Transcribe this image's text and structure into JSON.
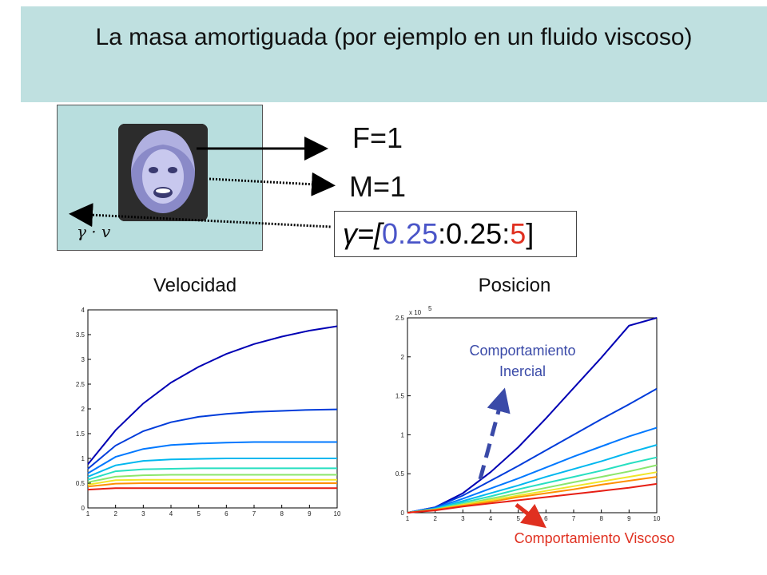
{
  "title": "La masa amortiguada (por ejemplo en un fluido viscoso)",
  "diagram": {
    "force_label": "F=1",
    "mass_label": "M=1",
    "gamma": {
      "prefix": "γ=[",
      "start": "0.25",
      "sep1": ":",
      "step": "0.25",
      "sep2": ":",
      "end": "5",
      "suffix": "]"
    },
    "drag_label": "γ · v",
    "colors": {
      "start": "#4a55c8",
      "end": "#e03020",
      "arrow": "#000000"
    },
    "icons": [
      "face-photo",
      "arrow-right",
      "dotted-arrow-left"
    ]
  },
  "annotations": {
    "inertial": "Comportamiento Inercial",
    "inertial_line1": "Comportamiento",
    "inertial_line2": "Inercial",
    "viscous": "Comportamiento Viscoso",
    "inertial_color": "#3a4aa8",
    "viscous_color": "#e03020"
  },
  "chart_data": [
    {
      "type": "line",
      "title": "Velocidad",
      "xlabel": "",
      "ylabel": "",
      "xlim": [
        1,
        10
      ],
      "ylim": [
        0,
        4
      ],
      "xticks": [
        "1",
        "2",
        "3",
        "4",
        "5",
        "6",
        "7",
        "8",
        "9",
        "10"
      ],
      "yticks": [
        "0",
        "0.5",
        "1",
        "1.5",
        "2",
        "2.5",
        "3",
        "3.5",
        "4"
      ],
      "grid": false,
      "gamma": [
        0.25,
        0.5,
        0.75,
        1,
        1.25,
        1.5,
        1.75,
        2,
        2.25,
        2.5,
        2.75,
        3,
        3.25,
        3.5,
        3.75,
        4,
        4.25,
        4.5,
        4.75,
        5
      ],
      "series_desc": "v(t) = (1/γ)(1 - e^{-γ t}) approaching terminal velocity 1/γ",
      "series": [
        {
          "gamma": 0.25,
          "x": [
            1,
            2,
            3,
            4,
            5,
            6,
            7,
            8,
            9,
            10
          ],
          "values": [
            0.88,
            1.57,
            2.11,
            2.53,
            2.85,
            3.11,
            3.31,
            3.46,
            3.58,
            3.67
          ]
        },
        {
          "gamma": 0.5,
          "x": [
            1,
            2,
            3,
            4,
            5,
            6,
            7,
            8,
            9,
            10
          ],
          "values": [
            0.79,
            1.26,
            1.55,
            1.73,
            1.84,
            1.9,
            1.94,
            1.96,
            1.98,
            1.99
          ]
        },
        {
          "gamma": 0.75,
          "x": [
            1,
            2,
            3,
            4,
            5,
            6,
            7,
            8,
            9,
            10
          ],
          "values": [
            0.7,
            1.03,
            1.19,
            1.27,
            1.3,
            1.32,
            1.33,
            1.33,
            1.33,
            1.33
          ]
        },
        {
          "gamma": 1.0,
          "x": [
            1,
            2,
            3,
            4,
            5,
            6,
            7,
            8,
            9,
            10
          ],
          "values": [
            0.63,
            0.86,
            0.95,
            0.98,
            0.99,
            1.0,
            1.0,
            1.0,
            1.0,
            1.0
          ]
        },
        {
          "gamma": 1.25,
          "x": [
            1,
            2,
            3,
            4,
            5,
            6,
            7,
            8,
            9,
            10
          ],
          "values": [
            0.57,
            0.74,
            0.78,
            0.79,
            0.8,
            0.8,
            0.8,
            0.8,
            0.8,
            0.8
          ]
        },
        {
          "gamma": 1.5,
          "x": [
            1,
            2,
            3,
            4,
            5,
            6,
            7,
            8,
            9,
            10
          ],
          "values": [
            0.52,
            0.63,
            0.66,
            0.67,
            0.67,
            0.67,
            0.67,
            0.67,
            0.67,
            0.67
          ]
        },
        {
          "gamma": 1.75,
          "x": [
            1,
            2,
            3,
            4,
            5,
            6,
            7,
            8,
            9,
            10
          ],
          "values": [
            0.47,
            0.56,
            0.57,
            0.57,
            0.57,
            0.57,
            0.57,
            0.57,
            0.57,
            0.57
          ]
        },
        {
          "gamma": 2.0,
          "x": [
            1,
            2,
            3,
            4,
            5,
            6,
            7,
            8,
            9,
            10
          ],
          "values": [
            0.43,
            0.49,
            0.5,
            0.5,
            0.5,
            0.5,
            0.5,
            0.5,
            0.5,
            0.5
          ]
        },
        {
          "gamma": 2.5,
          "x": [
            1,
            2,
            3,
            4,
            5,
            6,
            7,
            8,
            9,
            10
          ],
          "values": [
            0.37,
            0.4,
            0.4,
            0.4,
            0.4,
            0.4,
            0.4,
            0.4,
            0.4,
            0.4
          ]
        }
      ]
    },
    {
      "type": "line",
      "title": "Posicion",
      "xlabel": "",
      "ylabel": "",
      "xlim": [
        1,
        10
      ],
      "ylim": [
        0,
        2.5
      ],
      "y_multiplier": "x 10^5",
      "multiplier_base": "x 10",
      "multiplier_exp": "5",
      "xticks": [
        "1",
        "2",
        "3",
        "4",
        "5",
        "6",
        "7",
        "8",
        "9",
        "10"
      ],
      "yticks": [
        "0",
        "0.5",
        "1",
        "1.5",
        "2",
        "2.5"
      ],
      "grid": false,
      "series": [
        {
          "gamma": 0.25,
          "x": [
            1,
            2,
            3,
            4,
            5,
            6,
            7,
            8,
            9,
            10
          ],
          "values": [
            0.0,
            0.07,
            0.25,
            0.52,
            0.84,
            1.21,
            1.6,
            1.99,
            2.4,
            2.82
          ]
        },
        {
          "gamma": 0.5,
          "x": [
            1,
            2,
            3,
            4,
            5,
            6,
            7,
            8,
            9,
            10
          ],
          "values": [
            0.0,
            0.07,
            0.22,
            0.41,
            0.6,
            0.8,
            1.0,
            1.2,
            1.39,
            1.59
          ]
        },
        {
          "gamma": 0.75,
          "x": [
            1,
            2,
            3,
            4,
            5,
            6,
            7,
            8,
            9,
            10
          ],
          "values": [
            0.0,
            0.06,
            0.18,
            0.31,
            0.44,
            0.58,
            0.72,
            0.85,
            0.98,
            1.09
          ]
        },
        {
          "gamma": 1.0,
          "x": [
            1,
            2,
            3,
            4,
            5,
            6,
            7,
            8,
            9,
            10
          ],
          "values": [
            0.0,
            0.05,
            0.15,
            0.25,
            0.35,
            0.46,
            0.56,
            0.66,
            0.77,
            0.87
          ]
        },
        {
          "gamma": 1.25,
          "x": [
            1,
            2,
            3,
            4,
            5,
            6,
            7,
            8,
            9,
            10
          ],
          "values": [
            0.0,
            0.05,
            0.13,
            0.21,
            0.3,
            0.38,
            0.46,
            0.54,
            0.63,
            0.71
          ]
        },
        {
          "gamma": 1.5,
          "x": [
            1,
            2,
            3,
            4,
            5,
            6,
            7,
            8,
            9,
            10
          ],
          "values": [
            0.0,
            0.04,
            0.11,
            0.18,
            0.25,
            0.32,
            0.39,
            0.46,
            0.53,
            0.61
          ]
        },
        {
          "gamma": 1.75,
          "x": [
            1,
            2,
            3,
            4,
            5,
            6,
            7,
            8,
            9,
            10
          ],
          "values": [
            0.0,
            0.04,
            0.1,
            0.16,
            0.22,
            0.28,
            0.34,
            0.4,
            0.46,
            0.52
          ]
        },
        {
          "gamma": 2.0,
          "x": [
            1,
            2,
            3,
            4,
            5,
            6,
            7,
            8,
            9,
            10
          ],
          "values": [
            0.0,
            0.04,
            0.09,
            0.14,
            0.2,
            0.25,
            0.3,
            0.36,
            0.41,
            0.46
          ]
        },
        {
          "gamma": 2.5,
          "x": [
            1,
            2,
            3,
            4,
            5,
            6,
            7,
            8,
            9,
            10
          ],
          "values": [
            0.0,
            0.03,
            0.08,
            0.12,
            0.16,
            0.2,
            0.24,
            0.28,
            0.32,
            0.37
          ]
        }
      ]
    }
  ]
}
